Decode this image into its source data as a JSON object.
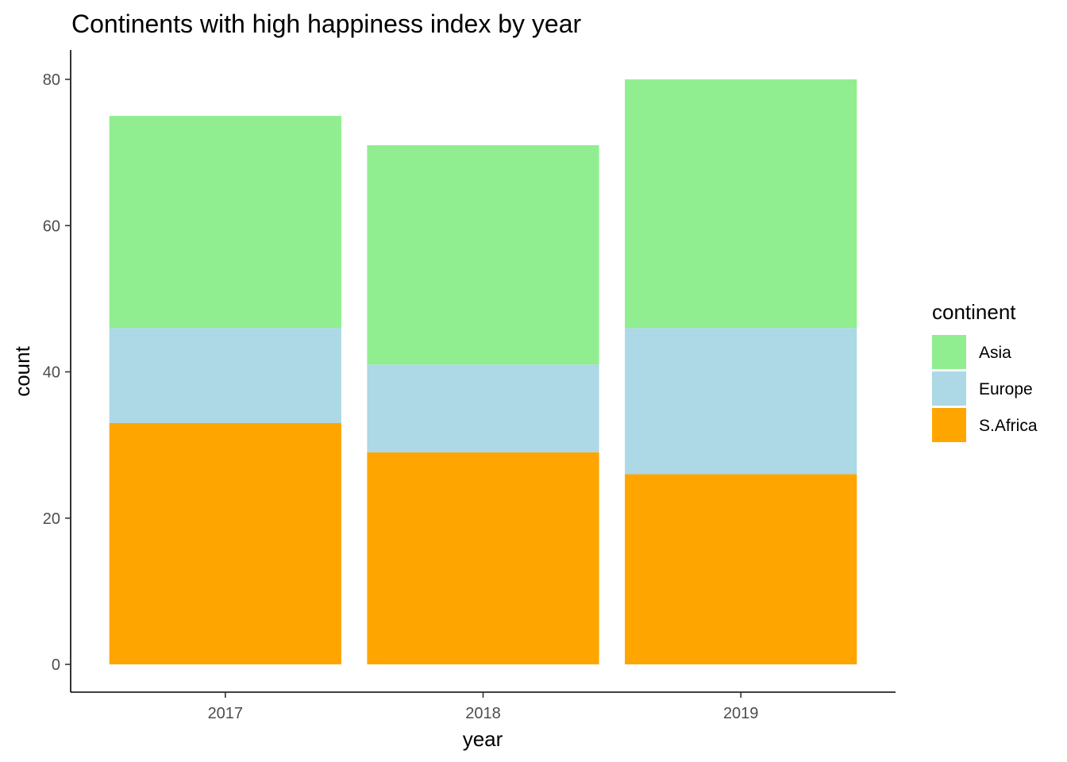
{
  "chart_data": {
    "type": "bar",
    "stacked": true,
    "title": "Continents with high happiness index by year",
    "xlabel": "year",
    "ylabel": "count",
    "categories": [
      "2017",
      "2018",
      "2019"
    ],
    "ylim": [
      -4,
      83.5
    ],
    "yticks": [
      0,
      20,
      40,
      60,
      80
    ],
    "yticks_labels": [
      "0",
      "20",
      "40",
      "60",
      "80"
    ],
    "series": [
      {
        "name": "S.Africa",
        "color": "#FFA500",
        "values": [
          33,
          29,
          26
        ]
      },
      {
        "name": "Europe",
        "color": "#ADD8E6",
        "values": [
          13,
          12,
          20
        ]
      },
      {
        "name": "Asia",
        "color": "#90EE90",
        "values": [
          29,
          30,
          34
        ]
      }
    ],
    "legend": {
      "title": "continent",
      "position": "right",
      "items": [
        "Asia",
        "Europe",
        "S.Africa"
      ]
    },
    "grid": false
  }
}
